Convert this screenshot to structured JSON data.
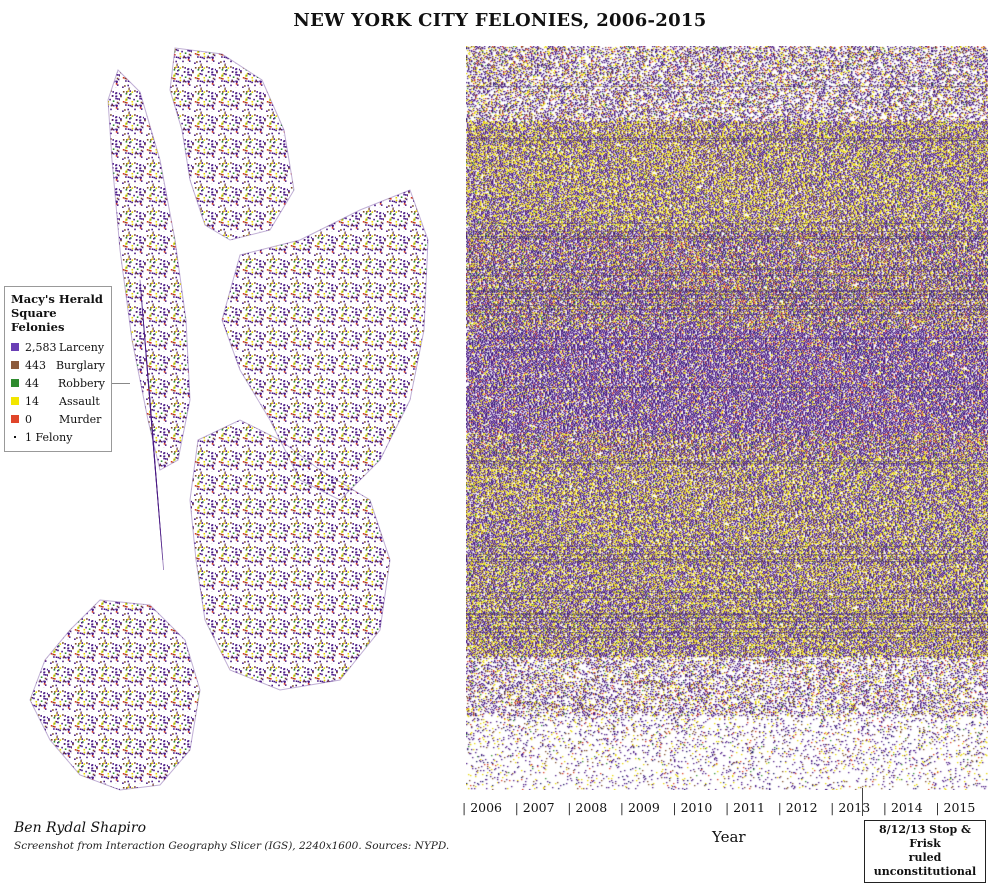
{
  "title": "NEW YORK CITY FELONIES, 2006-2015",
  "legend": {
    "title_line1": "Macy's Herald",
    "title_line2": "Square Felonies",
    "items": [
      {
        "count": "2,583",
        "label": "Larceny",
        "color": "#6a3fb5"
      },
      {
        "count": "443",
        "label": "Burglary",
        "color": "#8b5a3c"
      },
      {
        "count": "44",
        "label": "Robbery",
        "color": "#2e8b2e"
      },
      {
        "count": "14",
        "label": "Assault",
        "color": "#f2e600"
      },
      {
        "count": "0",
        "label": "Murder",
        "color": "#e0452a"
      }
    ],
    "unit_label": "1 Felony"
  },
  "timeline": {
    "years": [
      "2006",
      "2007",
      "2008",
      "2009",
      "2010",
      "2011",
      "2012",
      "2013",
      "2014",
      "2015"
    ],
    "axis_label": "Year"
  },
  "annotation": {
    "line1": "8/12/13 Stop & Frisk",
    "line2": "ruled unconstitutional"
  },
  "credits": {
    "author": "Ben Rydal Shapiro",
    "caption": "Screenshot from Interaction Geography Slicer (IGS), 2240x1600. Sources: NYPD."
  },
  "colors": {
    "larceny": "#4b1a86",
    "burglary": "#7a4a2a",
    "robbery": "#2e8b2e",
    "assault": "#e8d800",
    "murder": "#d83a20",
    "text": "#111111",
    "background": "#ffffff"
  }
}
